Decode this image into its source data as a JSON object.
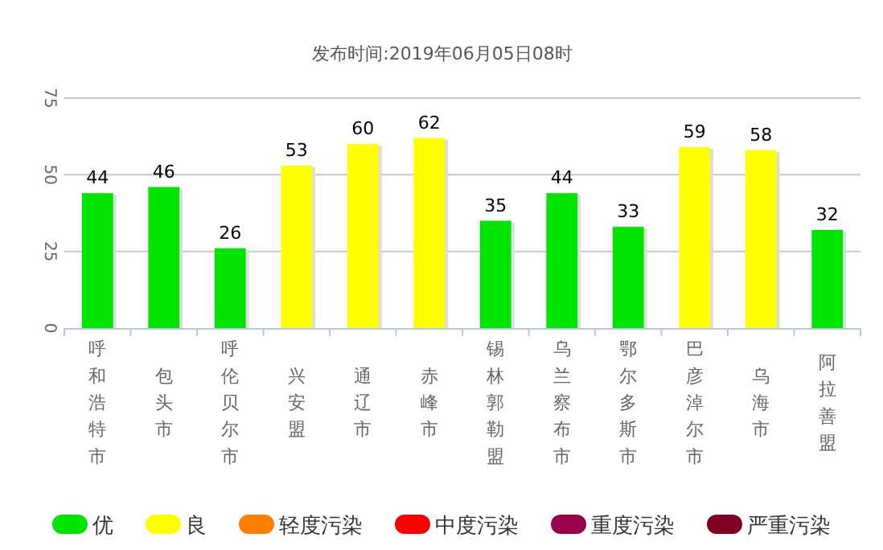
{
  "chart_data": {
    "type": "bar",
    "title": "发布时间:2019年06月05日08时",
    "categories": [
      "呼和浩特市",
      "包头市",
      "呼伦贝尔市",
      "兴安盟",
      "通辽市",
      "赤峰市",
      "锡林郭勒盟",
      "乌兰察布市",
      "鄂尔多斯市",
      "巴彦淖尔市",
      "乌海市",
      "阿拉善盟"
    ],
    "series": [
      {
        "name": "优",
        "color": "#00e400",
        "values": [
          44,
          46,
          26,
          null,
          null,
          null,
          35,
          44,
          33,
          null,
          null,
          32
        ]
      },
      {
        "name": "良",
        "color": "#ffff00",
        "values": [
          null,
          null,
          null,
          53,
          60,
          62,
          null,
          null,
          null,
          59,
          58,
          null
        ]
      },
      {
        "name": "轻度污染",
        "color": "#ff7e00",
        "values": [
          null,
          null,
          null,
          null,
          null,
          null,
          null,
          null,
          null,
          null,
          null,
          null
        ]
      },
      {
        "name": "中度污染",
        "color": "#ff0000",
        "values": [
          null,
          null,
          null,
          null,
          null,
          null,
          null,
          null,
          null,
          null,
          null,
          null
        ]
      },
      {
        "name": "重度污染",
        "color": "#99004c",
        "values": [
          null,
          null,
          null,
          null,
          null,
          null,
          null,
          null,
          null,
          null,
          null,
          null
        ]
      },
      {
        "name": "严重污染",
        "color": "#7e0023",
        "values": [
          null,
          null,
          null,
          null,
          null,
          null,
          null,
          null,
          null,
          null,
          null,
          null
        ]
      }
    ],
    "ylim": [
      0,
      75
    ],
    "yticks": [
      0,
      25,
      50,
      75
    ],
    "grid": "y",
    "legend": "bottom",
    "data_labels": true
  }
}
